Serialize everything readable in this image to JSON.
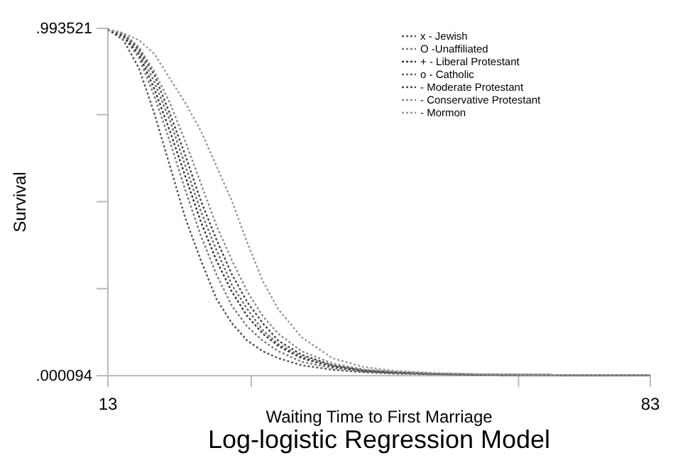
{
  "chart_data": {
    "type": "line",
    "title": "Log-logistic Regression Model",
    "xlabel": "Waiting Time to First Marriage",
    "ylabel": "Survival",
    "xlim": [
      13,
      83
    ],
    "xticks": [
      13,
      {
        "value": 31.5,
        "label": null
      },
      {
        "value": 66,
        "label": null
      },
      83
    ],
    "ylim": [
      9.4e-05,
      0.993521
    ],
    "yticks": [
      {
        "value": 9.4e-05,
        "label": ".000094"
      },
      {
        "value": 0.248951,
        "label": null
      },
      {
        "value": 0.497808,
        "label": null
      },
      {
        "value": 0.746664,
        "label": null
      },
      {
        "value": 0.993521,
        "label": ".993521"
      }
    ],
    "x": [
      13,
      15,
      17,
      19,
      21,
      23,
      25,
      27,
      29,
      31,
      33,
      35,
      38,
      42,
      46,
      50,
      55,
      60,
      65,
      70,
      75,
      83
    ],
    "line_style": "dotted",
    "marker": "none",
    "grid": false,
    "legend": "top right",
    "series": [
      {
        "name": "x - Jewish",
        "color": "#555555",
        "values": [
          0.99,
          0.96,
          0.88,
          0.75,
          0.6,
          0.45,
          0.33,
          0.22,
          0.15,
          0.1,
          0.07,
          0.05,
          0.03,
          0.017,
          0.01,
          0.006,
          0.004,
          0.003,
          0.002,
          0.002,
          0.001,
          0.001
        ]
      },
      {
        "name": "O -Unaffiliated",
        "color": "#777777",
        "values": [
          0.99,
          0.97,
          0.91,
          0.8,
          0.67,
          0.53,
          0.4,
          0.29,
          0.2,
          0.14,
          0.1,
          0.07,
          0.04,
          0.022,
          0.012,
          0.008,
          0.005,
          0.003,
          0.002,
          0.002,
          0.001,
          0.001
        ]
      },
      {
        "name": "+ - Liberal Protestant",
        "color": "#333333",
        "values": [
          0.99,
          0.97,
          0.92,
          0.82,
          0.7,
          0.57,
          0.44,
          0.33,
          0.24,
          0.17,
          0.12,
          0.085,
          0.05,
          0.026,
          0.014,
          0.009,
          0.005,
          0.003,
          0.002,
          0.002,
          0.001,
          0.001
        ]
      },
      {
        "name": "o - Catholic",
        "color": "#666666",
        "values": [
          0.99,
          0.975,
          0.93,
          0.84,
          0.73,
          0.6,
          0.47,
          0.36,
          0.26,
          0.19,
          0.13,
          0.09,
          0.055,
          0.028,
          0.015,
          0.009,
          0.005,
          0.003,
          0.002,
          0.002,
          0.001,
          0.001
        ]
      },
      {
        "name": "- Moderate Protestant",
        "color": "#444444",
        "values": [
          0.99,
          0.978,
          0.935,
          0.86,
          0.75,
          0.63,
          0.5,
          0.39,
          0.29,
          0.21,
          0.15,
          0.1,
          0.06,
          0.03,
          0.016,
          0.01,
          0.006,
          0.004,
          0.003,
          0.002,
          0.001,
          0.001
        ]
      },
      {
        "name": "- Conservative Protestant",
        "color": "#888888",
        "values": [
          0.99,
          0.98,
          0.94,
          0.87,
          0.78,
          0.67,
          0.55,
          0.43,
          0.33,
          0.24,
          0.17,
          0.12,
          0.07,
          0.035,
          0.018,
          0.011,
          0.006,
          0.004,
          0.003,
          0.002,
          0.001,
          0.001
        ]
      },
      {
        "name": "- Mormon",
        "color": "#999999",
        "values": [
          0.99,
          0.98,
          0.96,
          0.92,
          0.85,
          0.78,
          0.7,
          0.6,
          0.5,
          0.38,
          0.27,
          0.19,
          0.11,
          0.05,
          0.025,
          0.014,
          0.008,
          0.005,
          0.003,
          0.002,
          0.002,
          0.001
        ]
      }
    ]
  }
}
